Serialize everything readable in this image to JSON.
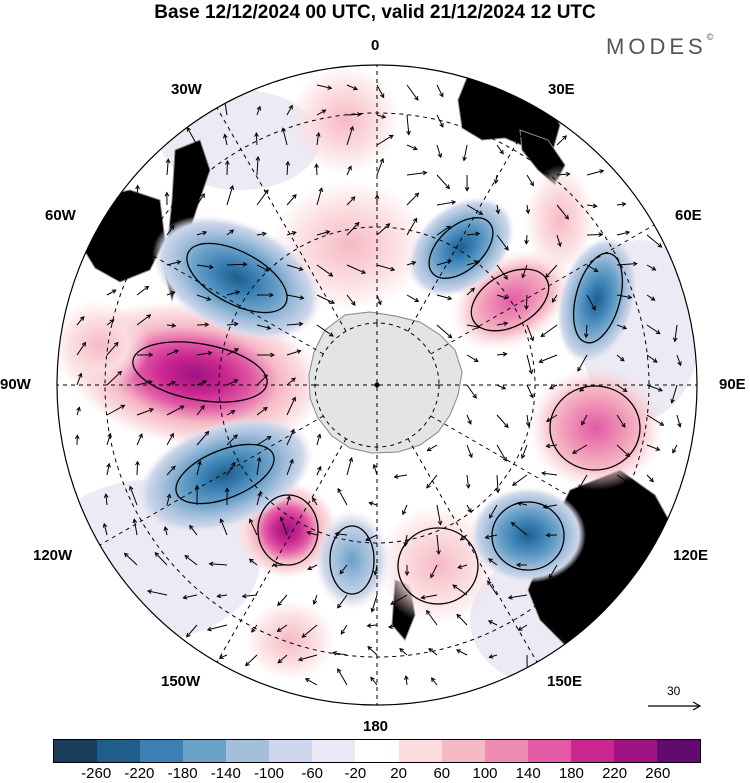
{
  "title": "Base 12/12/2024 00 UTC, valid 21/12/2024 12 UTC",
  "brand": "MODES",
  "brand_mark": "©",
  "longitude_labels": {
    "n0": "0",
    "e30": "30E",
    "e60": "60E",
    "e90": "90E",
    "e120": "120E",
    "e150": "150E",
    "s180": "180",
    "w150": "150W",
    "w120": "120W",
    "w90": "90W",
    "w60": "60W",
    "w30": "30W"
  },
  "reference_vector": {
    "label": "30",
    "icon": "arrow-right-icon"
  },
  "colorbar": {
    "colors": [
      "#1b3d5c",
      "#1f5e8a",
      "#3a80b5",
      "#6aa1c8",
      "#a3bfdc",
      "#cdd6ea",
      "#eae8f4",
      "#ffffff",
      "#fbdde0",
      "#f6b9c6",
      "#ee8cb4",
      "#e25aa6",
      "#c9268f",
      "#9e1283",
      "#620a6f"
    ],
    "labels": [
      "-260",
      "-220",
      "-180",
      "-140",
      "-100",
      "-60",
      "-20",
      "20",
      "60",
      "100",
      "140",
      "180",
      "220",
      "260"
    ]
  },
  "map_colors": {
    "land": "#e4e4e4",
    "coast": "#8c8c8c",
    "grid": "#000000"
  }
}
